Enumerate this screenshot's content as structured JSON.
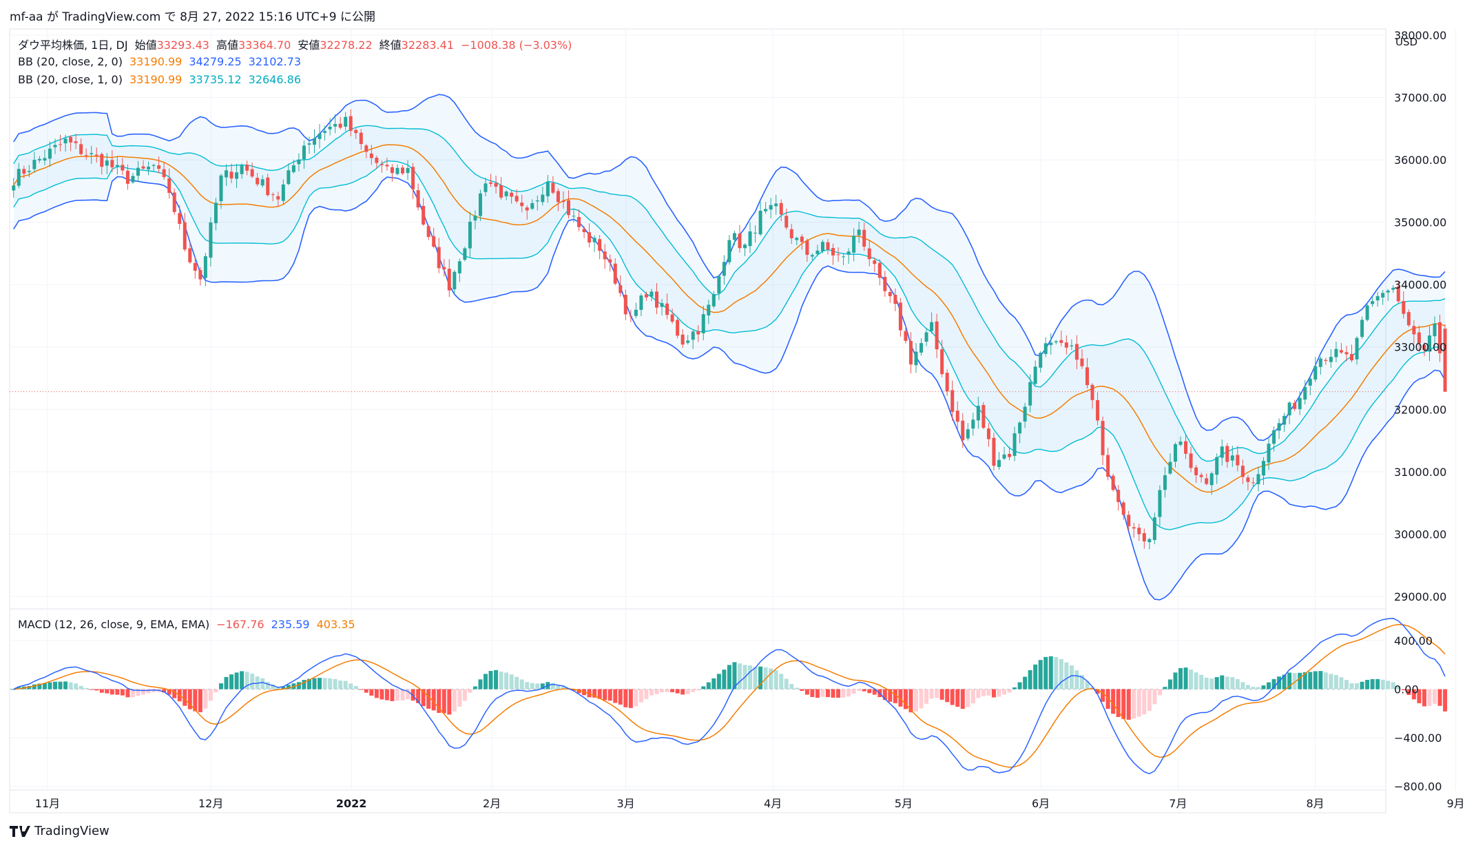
{
  "header": {
    "text": "mf-aa が TradingView.com で 8月 27, 2022 15:16 UTC+9 に公開"
  },
  "footer": {
    "logo_text": "TradingView"
  },
  "price_axis": {
    "currency": "USD"
  },
  "colors": {
    "up": "#26a69a",
    "down": "#ef5350",
    "bb_outer": "#2962ff",
    "bb_inner": "#00bcd4",
    "basis": "#f57c00",
    "macd": "#2962ff",
    "signal": "#f57c00",
    "hist_up_strong": "#26a69a",
    "hist_up_weak": "#b2dfdb",
    "hist_down_strong": "#ff5252",
    "hist_down_weak": "#ffcdd2"
  },
  "legend": {
    "main": {
      "label": "ダウ平均株価, 1日, DJ",
      "open_label": "始値",
      "open": "33293.43",
      "high_label": "高値",
      "high": "33364.70",
      "low_label": "安値",
      "low": "32278.22",
      "close_label": "終値",
      "close": "32283.41",
      "change": "−1008.38 (−3.03%)"
    },
    "bb2": {
      "label": "BB (20, close, 2, 0)",
      "basis": "33190.99",
      "upper": "34279.25",
      "lower": "32102.73"
    },
    "bb1": {
      "label": "BB (20, close, 1, 0)",
      "basis": "33190.99",
      "upper": "33735.12",
      "lower": "32646.86"
    },
    "macd": {
      "label": "MACD (12, 26, close, 9, EMA, EMA)",
      "hist": "−167.76",
      "macd": "235.59",
      "signal": "403.35"
    }
  },
  "chart_data": [
    {
      "type": "candlestick",
      "title": "ダウ平均株価, 1日, DJ",
      "ylabel": "USD",
      "ylim": [
        28800,
        38100
      ],
      "y_ticks": [
        "29000.00",
        "30000.00",
        "31000.00",
        "32000.00",
        "33000.00",
        "34000.00",
        "35000.00",
        "36000.00",
        "37000.00",
        "38000.00"
      ],
      "x_ticks": [
        "11月",
        "12月",
        "2022",
        "2月",
        "3月",
        "4月",
        "5月",
        "6月",
        "7月",
        "8月",
        "9月"
      ],
      "close_waypoints": [
        [
          0,
          35700
        ],
        [
          4,
          35950
        ],
        [
          10,
          36300
        ],
        [
          14,
          36100
        ],
        [
          18,
          35950
        ],
        [
          22,
          35700
        ],
        [
          27,
          35900
        ],
        [
          30,
          35500
        ],
        [
          33,
          34600
        ],
        [
          36,
          34100
        ],
        [
          40,
          35700
        ],
        [
          44,
          35900
        ],
        [
          48,
          35600
        ],
        [
          51,
          35400
        ],
        [
          56,
          36250
        ],
        [
          60,
          36500
        ],
        [
          64,
          36600
        ],
        [
          68,
          36100
        ],
        [
          72,
          35800
        ],
        [
          76,
          35850
        ],
        [
          80,
          34700
        ],
        [
          84,
          34000
        ],
        [
          88,
          34900
        ],
        [
          91,
          35700
        ],
        [
          95,
          35400
        ],
        [
          99,
          35100
        ],
        [
          103,
          35700
        ],
        [
          106,
          35300
        ],
        [
          110,
          34800
        ],
        [
          113,
          34600
        ],
        [
          116,
          34100
        ],
        [
          119,
          33400
        ],
        [
          122,
          33900
        ],
        [
          126,
          33500
        ],
        [
          129,
          33100
        ],
        [
          132,
          33300
        ],
        [
          135,
          33800
        ],
        [
          138,
          34800
        ],
        [
          141,
          34600
        ],
        [
          144,
          35100
        ],
        [
          147,
          35200
        ],
        [
          150,
          34800
        ],
        [
          153,
          34500
        ],
        [
          156,
          34600
        ],
        [
          160,
          34400
        ],
        [
          163,
          34900
        ],
        [
          167,
          34000
        ],
        [
          170,
          33600
        ],
        [
          173,
          32800
        ],
        [
          177,
          33300
        ],
        [
          180,
          32300
        ],
        [
          183,
          31500
        ],
        [
          186,
          32000
        ],
        [
          189,
          31200
        ],
        [
          192,
          31300
        ],
        [
          195,
          32100
        ],
        [
          198,
          33000
        ],
        [
          201,
          33000
        ],
        [
          205,
          32900
        ],
        [
          208,
          32100
        ],
        [
          211,
          31000
        ],
        [
          214,
          30400
        ],
        [
          217,
          29900
        ],
        [
          219,
          30000
        ],
        [
          222,
          31000
        ],
        [
          225,
          31500
        ],
        [
          227,
          31000
        ],
        [
          230,
          30900
        ],
        [
          233,
          31300
        ],
        [
          236,
          31100
        ],
        [
          239,
          30800
        ],
        [
          242,
          31500
        ],
        [
          245,
          31900
        ],
        [
          248,
          32200
        ],
        [
          251,
          32800
        ],
        [
          254,
          32900
        ],
        [
          258,
          32800
        ],
        [
          261,
          33600
        ],
        [
          264,
          33900
        ],
        [
          266,
          33950
        ],
        [
          269,
          33300
        ],
        [
          272,
          32900
        ],
        [
          274,
          33300
        ],
        [
          276,
          32283
        ]
      ],
      "last_bar": {
        "open": 33293.43,
        "high": 33364.7,
        "low": 32278.22,
        "close": 32283.41
      },
      "series": [
        {
          "name": "BB (20, close, 2, 0)",
          "values_at_last": {
            "basis": 33190.99,
            "upper": 34279.25,
            "lower": 32102.73
          }
        },
        {
          "name": "BB (20, close, 1, 0)",
          "values_at_last": {
            "basis": 33190.99,
            "upper": 33735.12,
            "lower": 32646.86
          }
        }
      ]
    },
    {
      "type": "line",
      "title": "MACD (12, 26, close, 9, EMA, EMA)",
      "ylim": [
        -830,
        660
      ],
      "y_ticks": [
        "400.00",
        "0.00",
        "−400.00",
        "−800.00"
      ],
      "series": [
        {
          "name": "MACD",
          "last": 235.59
        },
        {
          "name": "Signal",
          "last": 403.35
        },
        {
          "name": "Histogram",
          "last": -167.76
        }
      ]
    }
  ]
}
